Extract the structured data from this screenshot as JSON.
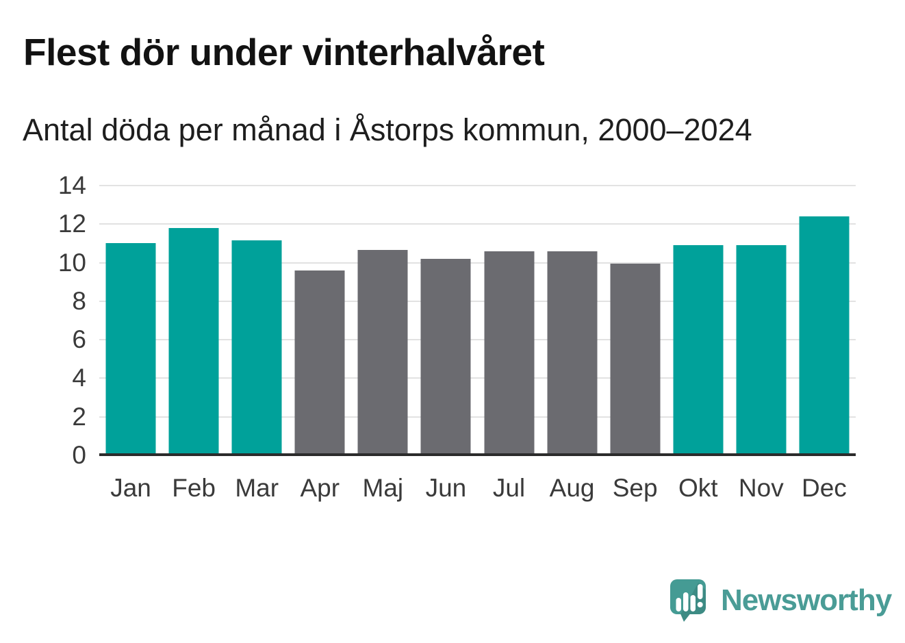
{
  "page": {
    "title": "Flest dör under vinterhalvåret",
    "subtitle": "Antal döda per månad i Åstorps kommun, 2000–2024"
  },
  "chart_data": {
    "type": "bar",
    "title": "Flest dör under vinterhalvåret",
    "subtitle": "Antal döda per månad i Åstorps kommun, 2000–2024",
    "categories": [
      "Jan",
      "Feb",
      "Mar",
      "Apr",
      "Maj",
      "Jun",
      "Jul",
      "Aug",
      "Sep",
      "Okt",
      "Nov",
      "Dec"
    ],
    "values": [
      11.0,
      11.8,
      11.15,
      9.6,
      10.65,
      10.2,
      10.6,
      10.6,
      9.95,
      10.9,
      10.9,
      12.4
    ],
    "bar_groups": [
      "winter",
      "winter",
      "winter",
      "summer",
      "summer",
      "summer",
      "summer",
      "summer",
      "summer",
      "winter",
      "winter",
      "winter"
    ],
    "group_colors": {
      "winter": "#00a19a",
      "summer": "#6b6b70"
    },
    "xlabel": "",
    "ylabel": "",
    "ylim": [
      0,
      14
    ],
    "yticks": [
      0,
      2,
      4,
      6,
      8,
      10,
      12,
      14
    ],
    "grid": true,
    "legend": false,
    "gridline_color": "#e2e2e2",
    "axis_color": "#2b2b2b"
  },
  "branding": {
    "name": "Newsworthy",
    "logo_icon": "newsworthy-speech-bubble-chart-icon",
    "icon_color": "#459b94",
    "wordmark_color": "#4a9c96"
  }
}
